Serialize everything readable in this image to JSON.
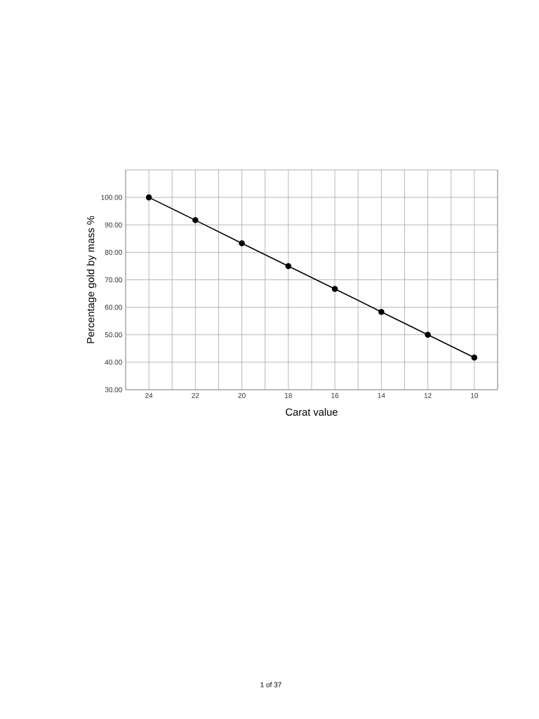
{
  "chart_data": {
    "type": "line",
    "xlabel": "Carat value",
    "ylabel": "Percentage gold by mass %",
    "x": [
      24,
      22,
      20,
      18,
      16,
      14,
      12,
      10
    ],
    "values": [
      100,
      91.7,
      83.3,
      75,
      66.7,
      58.3,
      50,
      41.7
    ],
    "color": "#000000",
    "marker": "circle",
    "line_style": "solid",
    "grid": true,
    "xlim": [
      25,
      9
    ],
    "xticks": [
      24,
      22,
      20,
      18,
      16,
      14,
      12,
      10
    ],
    "ylim": [
      30,
      110
    ],
    "yticks": [
      {
        "value": 30,
        "label": "30.00"
      },
      {
        "value": 40,
        "label": "40.00"
      },
      {
        "value": 50,
        "label": "50.00"
      },
      {
        "value": 60,
        "label": "60.00"
      },
      {
        "value": 70,
        "label": "70.00"
      },
      {
        "value": 80,
        "label": "80.00"
      },
      {
        "value": 90,
        "label": "90.00"
      },
      {
        "value": 100,
        "label": "100.00"
      }
    ],
    "annotations": [
      "1 of 37"
    ]
  }
}
